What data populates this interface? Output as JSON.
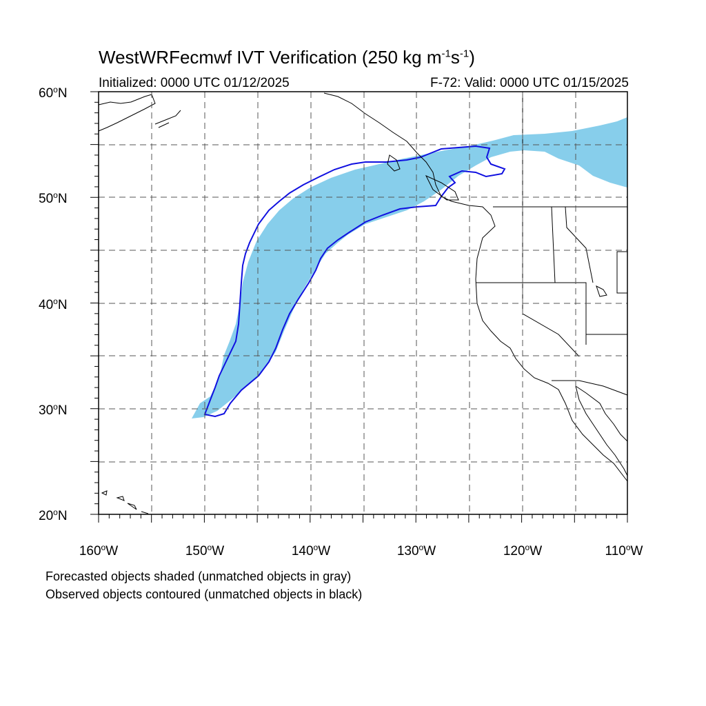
{
  "title": {
    "main": "WestWRFecmwf IVT Verification (250 kg m",
    "exp1": "-1",
    "mid": "s",
    "exp2": "-1",
    "close": ")"
  },
  "subtitle": {
    "initialized": "Initialized: 0000 UTC 01/12/2025",
    "valid": "F-72: Valid: 0000 UTC 01/15/2025"
  },
  "axes": {
    "lat_labels": [
      {
        "value": "60",
        "suffix": "N"
      },
      {
        "value": "50",
        "suffix": "N"
      },
      {
        "value": "40",
        "suffix": "N"
      },
      {
        "value": "30",
        "suffix": "N"
      },
      {
        "value": "20",
        "suffix": "N"
      }
    ],
    "lon_labels": [
      {
        "value": "160",
        "suffix": "W"
      },
      {
        "value": "150",
        "suffix": "W"
      },
      {
        "value": "140",
        "suffix": "W"
      },
      {
        "value": "130",
        "suffix": "W"
      },
      {
        "value": "120",
        "suffix": "W"
      },
      {
        "value": "110",
        "suffix": "W"
      }
    ],
    "lat_range": [
      20,
      60
    ],
    "lon_range": [
      -160,
      -110
    ],
    "grid_step_deg": 5
  },
  "footnotes": {
    "forecast": "Forecasted objects shaded (unmatched objects in gray)",
    "observed": "Observed objects contoured (unmatched objects in black)"
  },
  "colors": {
    "forecast_fill": "#87ceeb",
    "observed_contour": "#1010e0",
    "coast": "#000000",
    "grid": "#555555"
  }
}
